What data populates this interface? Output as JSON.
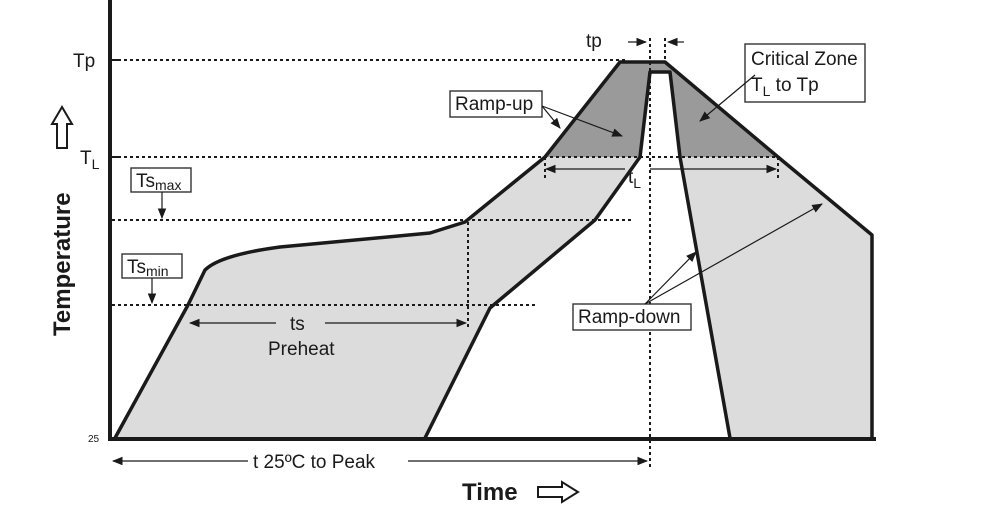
{
  "labels": {
    "tp_level": "Tp",
    "tl_level_main": "T",
    "tl_level_sub": "L",
    "tsmax_main": "Ts",
    "tsmax_sub": "max",
    "tsmin_main": "Ts",
    "tsmin_sub": "min",
    "tp_duration": "tp",
    "critical_zone_line1": "Critical Zone",
    "critical_zone_line2_main": "T",
    "critical_zone_line2_sub": "L",
    "critical_zone_line2_rest": " to Tp",
    "ramp_up": "Ramp-up",
    "tl_duration_main": "t",
    "tl_duration_sub": "L",
    "ts_duration": "ts",
    "preheat": "Preheat",
    "ramp_down": "Ramp-down",
    "base_temp": "25",
    "total_time": "t  25ºC to Peak",
    "x_axis_title": "Time",
    "y_axis_title": "Temperature"
  },
  "colors": {
    "window_fill": "#dcdcdc",
    "critical_fill": "#9a9a9a",
    "line": "#1a1a1a"
  }
}
